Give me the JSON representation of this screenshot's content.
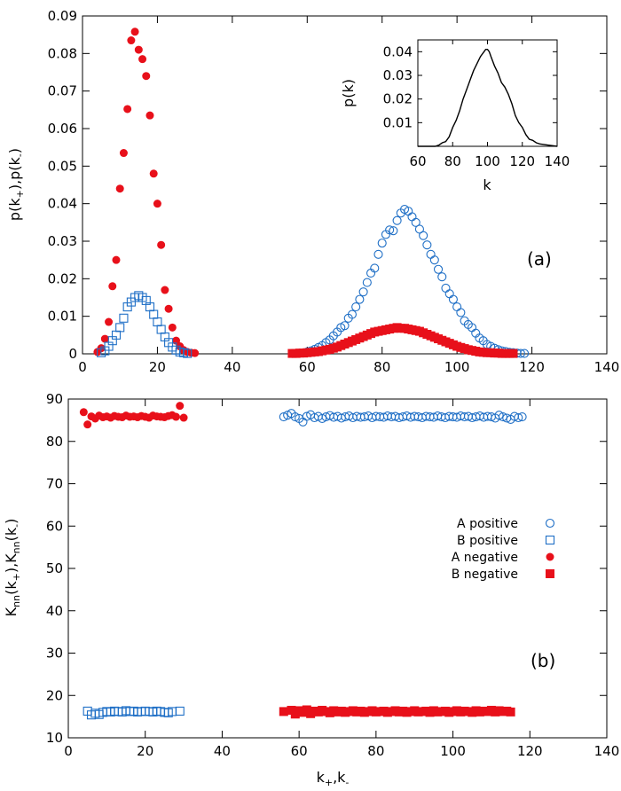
{
  "chart_data": [
    {
      "id": "a",
      "type": "scatter",
      "panel_label": "(a)",
      "ylabel": "p(k+),p(k-)",
      "xlim": [
        0,
        140
      ],
      "ylim": [
        0,
        0.09
      ],
      "xticks": [
        0,
        20,
        40,
        60,
        80,
        100,
        120,
        140
      ],
      "xtick_labels": [
        "0",
        "20",
        "40",
        "60",
        "80",
        "100",
        "120",
        "140"
      ],
      "yticks": [
        0,
        0.01,
        0.02,
        0.03,
        0.04,
        0.05,
        0.06,
        0.07,
        0.08,
        0.09
      ],
      "ytick_labels": [
        "0",
        "0.01",
        "0.02",
        "0.03",
        "0.04",
        "0.05",
        "0.06",
        "0.07",
        "0.08",
        "0.09"
      ],
      "series": [
        {
          "name": "A negative",
          "marker": "filled-circle",
          "color": "#e8101a",
          "x": [
            4,
            5,
            6,
            7,
            8,
            9,
            10,
            11,
            12,
            13,
            14,
            15,
            16,
            17,
            18,
            19,
            20,
            21,
            22,
            23,
            24,
            25,
            26,
            27,
            28,
            29,
            30
          ],
          "y": [
            0.0005,
            0.0015,
            0.004,
            0.0085,
            0.018,
            0.025,
            0.044,
            0.0535,
            0.0652,
            0.0835,
            0.0858,
            0.081,
            0.0785,
            0.074,
            0.0635,
            0.048,
            0.04,
            0.029,
            0.017,
            0.012,
            0.007,
            0.0035,
            0.002,
            0.001,
            0.0005,
            0.0003,
            0.0002
          ]
        },
        {
          "name": "B positive",
          "marker": "open-square",
          "color": "#1f6fc6",
          "x": [
            5,
            6,
            7,
            8,
            9,
            10,
            11,
            12,
            13,
            14,
            15,
            16,
            17,
            18,
            19,
            20,
            21,
            22,
            23,
            24,
            25,
            26,
            27,
            28
          ],
          "y": [
            0.0003,
            0.0008,
            0.002,
            0.0035,
            0.005,
            0.007,
            0.0095,
            0.0125,
            0.0138,
            0.015,
            0.0155,
            0.015,
            0.0142,
            0.0125,
            0.0105,
            0.0085,
            0.0065,
            0.0045,
            0.003,
            0.0018,
            0.001,
            0.0005,
            0.0003,
            0.0001
          ]
        },
        {
          "name": "A positive",
          "marker": "open-circle",
          "color": "#1f6fc6",
          "x": [
            56,
            58,
            60,
            61,
            62,
            63,
            64,
            65,
            66,
            67,
            68,
            69,
            70,
            71,
            72,
            73,
            74,
            75,
            76,
            77,
            78,
            79,
            80,
            81,
            82,
            83,
            84,
            85,
            86,
            87,
            88,
            89,
            90,
            91,
            92,
            93,
            94,
            95,
            96,
            97,
            98,
            99,
            100,
            101,
            102,
            103,
            104,
            105,
            106,
            107,
            108,
            109,
            110,
            111,
            112,
            113,
            114,
            115,
            116,
            117,
            118
          ],
          "y": [
            0.0001,
            0.0002,
            0.0005,
            0.0008,
            0.0012,
            0.0017,
            0.0022,
            0.003,
            0.0037,
            0.0048,
            0.0058,
            0.007,
            0.0075,
            0.0095,
            0.0105,
            0.0125,
            0.0145,
            0.0165,
            0.019,
            0.0215,
            0.0228,
            0.0265,
            0.0295,
            0.0318,
            0.033,
            0.0328,
            0.0355,
            0.0375,
            0.0385,
            0.038,
            0.0365,
            0.035,
            0.0332,
            0.0315,
            0.029,
            0.0265,
            0.025,
            0.0225,
            0.0205,
            0.0175,
            0.016,
            0.0145,
            0.0125,
            0.011,
            0.0088,
            0.0078,
            0.007,
            0.0055,
            0.0042,
            0.0035,
            0.0025,
            0.002,
            0.0015,
            0.0011,
            0.0008,
            0.0006,
            0.0004,
            0.0003,
            0.0002,
            0.0001,
            0.0001
          ]
        },
        {
          "name": "B negative",
          "marker": "filled-square",
          "color": "#e8101a",
          "x": [
            56,
            57,
            58,
            59,
            60,
            61,
            62,
            63,
            64,
            65,
            66,
            67,
            68,
            69,
            70,
            71,
            72,
            73,
            74,
            75,
            76,
            77,
            78,
            79,
            80,
            81,
            82,
            83,
            84,
            85,
            86,
            87,
            88,
            89,
            90,
            91,
            92,
            93,
            94,
            95,
            96,
            97,
            98,
            99,
            100,
            101,
            102,
            103,
            104,
            105,
            106,
            107,
            108,
            109,
            110,
            111,
            112,
            113,
            114,
            115
          ],
          "y": [
            0.0001,
            0.0001,
            0.0002,
            0.0002,
            0.0003,
            0.0004,
            0.0005,
            0.0006,
            0.0008,
            0.001,
            0.0012,
            0.0015,
            0.0018,
            0.0022,
            0.0026,
            0.003,
            0.0034,
            0.0038,
            0.0042,
            0.0046,
            0.005,
            0.0054,
            0.0058,
            0.006,
            0.0062,
            0.0064,
            0.0066,
            0.0068,
            0.007,
            0.0068,
            0.0068,
            0.0066,
            0.0064,
            0.0062,
            0.006,
            0.0056,
            0.0052,
            0.0048,
            0.0044,
            0.004,
            0.0036,
            0.0032,
            0.0028,
            0.0024,
            0.002,
            0.0017,
            0.0014,
            0.0011,
            0.0009,
            0.0007,
            0.0005,
            0.0004,
            0.0003,
            0.0003,
            0.0002,
            0.0002,
            0.0001,
            0.0001,
            0.0001,
            0.0001
          ]
        }
      ]
    },
    {
      "id": "inset",
      "type": "line",
      "xlabel": "k",
      "ylabel": "p(k)",
      "xlim": [
        60,
        140
      ],
      "ylim": [
        0,
        0.045
      ],
      "xticks": [
        60,
        80,
        100,
        120,
        140
      ],
      "xtick_labels": [
        "60",
        "80",
        "100",
        "120",
        "140"
      ],
      "yticks": [
        0.01,
        0.02,
        0.03,
        0.04
      ],
      "ytick_labels": [
        "0.01",
        "0.02",
        "0.03",
        "0.04"
      ],
      "series": [
        {
          "name": "p(k)",
          "color": "#000000",
          "x": [
            60,
            65,
            70,
            72,
            74,
            76,
            78,
            80,
            82,
            84,
            86,
            88,
            90,
            92,
            94,
            96,
            98,
            99,
            100,
            101,
            102,
            104,
            106,
            108,
            110,
            112,
            114,
            116,
            118,
            120,
            122,
            124,
            126,
            128,
            130,
            135,
            140
          ],
          "y": [
            0,
            0,
            0,
            0.0005,
            0.0015,
            0.002,
            0.004,
            0.008,
            0.011,
            0.015,
            0.02,
            0.024,
            0.028,
            0.032,
            0.035,
            0.038,
            0.04,
            0.041,
            0.041,
            0.04,
            0.038,
            0.034,
            0.031,
            0.027,
            0.025,
            0.022,
            0.018,
            0.013,
            0.01,
            0.008,
            0.005,
            0.003,
            0.0025,
            0.0015,
            0.001,
            0.0005,
            0
          ]
        }
      ]
    },
    {
      "id": "b",
      "type": "scatter",
      "panel_label": "(b)",
      "xlabel": "k+,k-",
      "ylabel": "Knn(k+),Knn(k-)",
      "xlim": [
        0,
        140
      ],
      "ylim": [
        10,
        90
      ],
      "xticks": [
        0,
        20,
        40,
        60,
        80,
        100,
        120,
        140
      ],
      "xtick_labels": [
        "0",
        "20",
        "40",
        "60",
        "80",
        "100",
        "120",
        "140"
      ],
      "yticks": [
        10,
        20,
        30,
        40,
        50,
        60,
        70,
        80,
        90
      ],
      "ytick_labels": [
        "10",
        "20",
        "30",
        "40",
        "50",
        "60",
        "70",
        "80",
        "90"
      ],
      "series": [
        {
          "name": "A positive",
          "marker": "open-circle",
          "color": "#1f6fc6",
          "x": [
            56,
            57,
            58,
            59,
            60,
            61,
            62,
            63,
            64,
            65,
            66,
            67,
            68,
            69,
            70,
            71,
            72,
            73,
            74,
            75,
            76,
            77,
            78,
            79,
            80,
            81,
            82,
            83,
            84,
            85,
            86,
            87,
            88,
            89,
            90,
            91,
            92,
            93,
            94,
            95,
            96,
            97,
            98,
            99,
            100,
            101,
            102,
            103,
            104,
            105,
            106,
            107,
            108,
            109,
            110,
            111,
            112,
            113,
            114,
            115,
            116,
            117,
            118
          ],
          "y": [
            85.8,
            86.2,
            86.6,
            85.8,
            85.4,
            84.6,
            85.9,
            86.3,
            85.6,
            85.9,
            85.4,
            85.8,
            86.1,
            85.7,
            85.9,
            85.5,
            85.8,
            86.0,
            85.6,
            85.9,
            85.7,
            85.8,
            86.0,
            85.6,
            85.9,
            85.8,
            85.7,
            86.0,
            85.8,
            85.9,
            85.6,
            85.8,
            86.0,
            85.7,
            85.9,
            85.8,
            85.6,
            85.9,
            85.8,
            85.7,
            86.0,
            85.8,
            85.6,
            85.9,
            85.8,
            85.7,
            86.0,
            85.8,
            85.9,
            85.6,
            85.8,
            86.0,
            85.7,
            85.9,
            85.8,
            85.5,
            86.2,
            85.8,
            85.5,
            85.2,
            85.9,
            85.6,
            85.8
          ]
        },
        {
          "name": "B positive",
          "marker": "open-square",
          "color": "#1f6fc6",
          "x": [
            5,
            6,
            7,
            8,
            9,
            10,
            11,
            12,
            13,
            14,
            15,
            16,
            17,
            18,
            19,
            20,
            21,
            22,
            23,
            24,
            25,
            26,
            27,
            29
          ],
          "y": [
            16.3,
            15.4,
            15.8,
            15.5,
            16.0,
            16.2,
            16.1,
            16.3,
            16.2,
            16.1,
            16.4,
            16.2,
            16.3,
            16.1,
            16.2,
            16.3,
            16.2,
            16.1,
            16.3,
            16.2,
            16.0,
            15.9,
            16.2,
            16.3
          ]
        },
        {
          "name": "A negative",
          "marker": "filled-circle",
          "color": "#e8101a",
          "x": [
            4,
            5,
            6,
            7,
            8,
            9,
            10,
            11,
            12,
            13,
            14,
            15,
            16,
            17,
            18,
            19,
            20,
            21,
            22,
            23,
            24,
            25,
            26,
            27,
            28,
            29,
            30
          ],
          "y": [
            86.9,
            84.0,
            85.9,
            85.4,
            86.1,
            85.7,
            85.9,
            85.6,
            86.0,
            85.8,
            85.7,
            86.1,
            85.8,
            85.9,
            85.7,
            86.0,
            85.8,
            85.6,
            86.1,
            85.9,
            85.8,
            85.7,
            86.0,
            86.2,
            85.8,
            88.4,
            85.6
          ]
        },
        {
          "name": "B negative",
          "marker": "filled-square",
          "color": "#e8101a",
          "x": [
            56,
            58,
            59,
            60,
            61,
            62,
            63,
            64,
            65,
            66,
            67,
            68,
            69,
            70,
            71,
            72,
            73,
            74,
            75,
            76,
            77,
            78,
            79,
            80,
            81,
            82,
            83,
            84,
            85,
            86,
            87,
            88,
            89,
            90,
            91,
            92,
            93,
            94,
            95,
            96,
            97,
            98,
            99,
            100,
            101,
            102,
            103,
            104,
            105,
            106,
            107,
            108,
            109,
            110,
            111,
            112,
            113,
            114,
            115
          ],
          "y": [
            16.2,
            16.5,
            15.6,
            16.4,
            16.0,
            16.6,
            15.7,
            16.3,
            16.1,
            16.5,
            16.2,
            15.9,
            16.4,
            16.1,
            16.3,
            16.0,
            16.2,
            16.4,
            16.1,
            16.3,
            16.0,
            16.2,
            16.4,
            16.1,
            16.2,
            16.3,
            16.0,
            16.2,
            16.4,
            16.1,
            16.3,
            16.0,
            16.2,
            16.4,
            16.1,
            16.2,
            16.3,
            16.0,
            16.4,
            16.1,
            16.2,
            16.3,
            16.0,
            16.2,
            16.4,
            16.1,
            16.3,
            16.2,
            16.0,
            16.4,
            16.1,
            16.3,
            16.2,
            16.5,
            16.1,
            16.4,
            16.2,
            16.3,
            16.1
          ]
        }
      ],
      "legend": {
        "placement": "right-middle",
        "entries": [
          {
            "label": "A positive",
            "marker": "open-circle",
            "color": "#1f6fc6"
          },
          {
            "label": "B positive",
            "marker": "open-square",
            "color": "#1f6fc6"
          },
          {
            "label": "A negative",
            "marker": "filled-circle",
            "color": "#e8101a"
          },
          {
            "label": "B negative",
            "marker": "filled-square",
            "color": "#e8101a"
          }
        ]
      }
    }
  ]
}
